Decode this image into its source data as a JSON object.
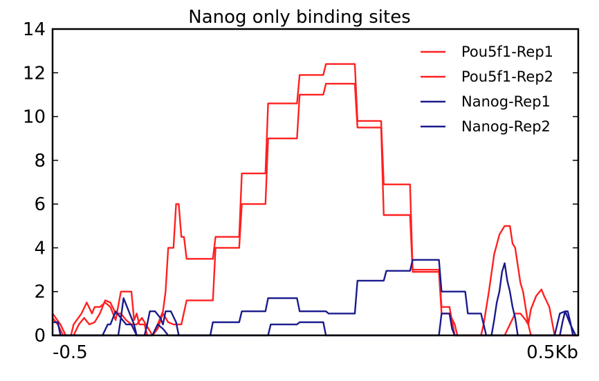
{
  "chart_data": {
    "type": "line",
    "title": "Nanog only binding sites",
    "xlabel": "",
    "ylabel": "",
    "xlim": [
      0,
      100
    ],
    "ylim": [
      0,
      14
    ],
    "yticks": [
      0,
      2,
      4,
      6,
      8,
      10,
      12,
      14
    ],
    "xtick_labels": [
      "-0.5",
      "0.5Kb"
    ],
    "grid": false,
    "legend_position": "top-right",
    "series": [
      {
        "name": "Pou5f1-Rep1",
        "color": "#ff2020",
        "points": [
          [
            0,
            1.0
          ],
          [
            1.5,
            0.5
          ],
          [
            2.5,
            0.0
          ],
          [
            3.5,
            0.0
          ],
          [
            4,
            0.5
          ],
          [
            5.5,
            1.0
          ],
          [
            6.5,
            1.5
          ],
          [
            7.5,
            1.0
          ],
          [
            8,
            1.3
          ],
          [
            9,
            1.3
          ],
          [
            10,
            1.5
          ],
          [
            11,
            1.3
          ],
          [
            12,
            0.7
          ],
          [
            13,
            2.0
          ],
          [
            14,
            2.0
          ],
          [
            15,
            2.0
          ],
          [
            15.5,
            0.7
          ],
          [
            16,
            1.0
          ],
          [
            16.5,
            0.5
          ],
          [
            17,
            0.5
          ],
          [
            17.5,
            0.5
          ],
          [
            18,
            0.0
          ],
          [
            19,
            0.0
          ],
          [
            20,
            0.5
          ],
          [
            21,
            1.1
          ],
          [
            21.5,
            2.0
          ],
          [
            22,
            4.0
          ],
          [
            23,
            4.0
          ],
          [
            23.5,
            6.0
          ],
          [
            24,
            6.0
          ],
          [
            24.5,
            4.5
          ],
          [
            25,
            4.5
          ],
          [
            25.5,
            3.5
          ],
          [
            30.5,
            3.5
          ],
          [
            31,
            4.5
          ],
          [
            35.5,
            4.5
          ],
          [
            36,
            7.4
          ],
          [
            40.5,
            7.4
          ],
          [
            41,
            10.6
          ],
          [
            46.5,
            10.6
          ],
          [
            47,
            11.9
          ],
          [
            51.5,
            11.9
          ],
          [
            52,
            12.4
          ],
          [
            57.5,
            12.4
          ],
          [
            58,
            9.8
          ],
          [
            62.5,
            9.8
          ],
          [
            63,
            6.9
          ],
          [
            68,
            6.9
          ],
          [
            68.5,
            3.0
          ],
          [
            73.5,
            3.0
          ],
          [
            74,
            1.3
          ],
          [
            75.5,
            1.3
          ],
          [
            76.5,
            0.0
          ],
          [
            86,
            0.0
          ],
          [
            87,
            0.5
          ],
          [
            88,
            1.0
          ],
          [
            89,
            1.0
          ],
          [
            90,
            0.7
          ],
          [
            90.5,
            0.5
          ],
          [
            91,
            1.2
          ],
          [
            92,
            1.8
          ],
          [
            93,
            2.1
          ],
          [
            93.5,
            1.8
          ],
          [
            94.5,
            1.3
          ],
          [
            95.5,
            0.0
          ],
          [
            100,
            0.0
          ]
        ]
      },
      {
        "name": "Pou5f1-Rep2",
        "color": "#ff2020",
        "points": [
          [
            0,
            0.8
          ],
          [
            1,
            0.5
          ],
          [
            2,
            0.0
          ],
          [
            4,
            0.0
          ],
          [
            5,
            0.5
          ],
          [
            6,
            0.8
          ],
          [
            7,
            0.5
          ],
          [
            8,
            0.6
          ],
          [
            9,
            1.0
          ],
          [
            10,
            1.6
          ],
          [
            11,
            1.5
          ],
          [
            12,
            1.0
          ],
          [
            13,
            1.0
          ],
          [
            14,
            0.7
          ],
          [
            15,
            0.5
          ],
          [
            16,
            0.5
          ],
          [
            17,
            0.8
          ],
          [
            18,
            0.4
          ],
          [
            19,
            0.0
          ],
          [
            20,
            0.3
          ],
          [
            21,
            1.0
          ],
          [
            22,
            0.6
          ],
          [
            23,
            0.5
          ],
          [
            24.5,
            0.5
          ],
          [
            25.5,
            1.6
          ],
          [
            30.5,
            1.6
          ],
          [
            31,
            4.0
          ],
          [
            35.5,
            4.0
          ],
          [
            36,
            6.0
          ],
          [
            40.5,
            6.0
          ],
          [
            41,
            9.0
          ],
          [
            46.5,
            9.0
          ],
          [
            47,
            11.0
          ],
          [
            51.5,
            11.0
          ],
          [
            52,
            11.5
          ],
          [
            57.5,
            11.5
          ],
          [
            58,
            9.5
          ],
          [
            62.5,
            9.5
          ],
          [
            63,
            5.5
          ],
          [
            68,
            5.5
          ],
          [
            68.5,
            2.9
          ],
          [
            73.5,
            2.9
          ],
          [
            74,
            1.0
          ],
          [
            75.5,
            1.0
          ],
          [
            76.5,
            0.5
          ],
          [
            77,
            0.0
          ],
          [
            81.5,
            0.0
          ],
          [
            82,
            0.5
          ],
          [
            83,
            2.0
          ],
          [
            84,
            3.7
          ],
          [
            85,
            4.6
          ],
          [
            86,
            5.0
          ],
          [
            87,
            5.0
          ],
          [
            87.5,
            4.2
          ],
          [
            88,
            4.0
          ],
          [
            89,
            2.4
          ],
          [
            89.5,
            2.0
          ],
          [
            90.5,
            0.5
          ],
          [
            91,
            0.0
          ],
          [
            100,
            0.0
          ]
        ]
      },
      {
        "name": "Nanog-Rep1",
        "color": "#1a1a8c",
        "points": [
          [
            0,
            0.0
          ],
          [
            9.5,
            0.0
          ],
          [
            10.5,
            0.5
          ],
          [
            11,
            0.5
          ],
          [
            12,
            1.1
          ],
          [
            13,
            0.8
          ],
          [
            14,
            0.5
          ],
          [
            15,
            0.5
          ],
          [
            16,
            0.0
          ],
          [
            19,
            0.0
          ],
          [
            20,
            0.5
          ],
          [
            21,
            0.3
          ],
          [
            22,
            0.0
          ],
          [
            30,
            0.0
          ],
          [
            30.5,
            0.6
          ],
          [
            35.5,
            0.6
          ],
          [
            36,
            1.1
          ],
          [
            40.5,
            1.1
          ],
          [
            41,
            1.7
          ],
          [
            46.5,
            1.7
          ],
          [
            47,
            1.1
          ],
          [
            52,
            1.1
          ],
          [
            52.5,
            1.0
          ],
          [
            57.5,
            1.0
          ],
          [
            58,
            2.5
          ],
          [
            63,
            2.5
          ],
          [
            63.5,
            2.95
          ],
          [
            68,
            2.95
          ],
          [
            68.5,
            3.45
          ],
          [
            73.5,
            3.45
          ],
          [
            74,
            2.0
          ],
          [
            78.5,
            2.0
          ],
          [
            79,
            1.0
          ],
          [
            81.5,
            1.0
          ],
          [
            82,
            0.5
          ],
          [
            82.5,
            0.0
          ],
          [
            83.5,
            0.0
          ],
          [
            84,
            0.7
          ],
          [
            84.5,
            1.5
          ],
          [
            85,
            2.0
          ],
          [
            85.5,
            2.9
          ],
          [
            86,
            3.3
          ],
          [
            86.5,
            2.5
          ],
          [
            87,
            2.0
          ],
          [
            87.5,
            1.3
          ],
          [
            88,
            0.8
          ],
          [
            88.5,
            0.0
          ],
          [
            95.5,
            0.0
          ],
          [
            96,
            0.5
          ],
          [
            96.5,
            1.0
          ],
          [
            97.5,
            1.1
          ],
          [
            98.5,
            0.5
          ],
          [
            99.5,
            0.0
          ],
          [
            100,
            0.0
          ]
        ]
      },
      {
        "name": "Nanog-Rep2",
        "color": "#1a1a8c",
        "points": [
          [
            0,
            0.6
          ],
          [
            1,
            0.6
          ],
          [
            1.5,
            0.0
          ],
          [
            12.5,
            0.0
          ],
          [
            13,
            0.8
          ],
          [
            13.5,
            1.7
          ],
          [
            14.5,
            1.1
          ],
          [
            15.5,
            0.5
          ],
          [
            16,
            0.0
          ],
          [
            17.5,
            0.0
          ],
          [
            18,
            0.5
          ],
          [
            18.5,
            1.1
          ],
          [
            19.5,
            1.1
          ],
          [
            20.5,
            0.8
          ],
          [
            21,
            0.5
          ],
          [
            21.5,
            1.1
          ],
          [
            22.5,
            1.1
          ],
          [
            23.5,
            0.6
          ],
          [
            24,
            0.0
          ],
          [
            41,
            0.0
          ],
          [
            41.5,
            0.5
          ],
          [
            46.5,
            0.5
          ],
          [
            47,
            0.6
          ],
          [
            51.5,
            0.6
          ],
          [
            52,
            0.0
          ],
          [
            73.5,
            0.0
          ],
          [
            74,
            1.0
          ],
          [
            75.5,
            1.0
          ],
          [
            76,
            0.3
          ],
          [
            76.5,
            0.0
          ],
          [
            96.5,
            0.0
          ],
          [
            97,
            0.6
          ],
          [
            97.5,
            1.1
          ],
          [
            98,
            1.1
          ],
          [
            98.5,
            0.6
          ],
          [
            99,
            0.0
          ],
          [
            100,
            0.0
          ]
        ]
      }
    ]
  }
}
